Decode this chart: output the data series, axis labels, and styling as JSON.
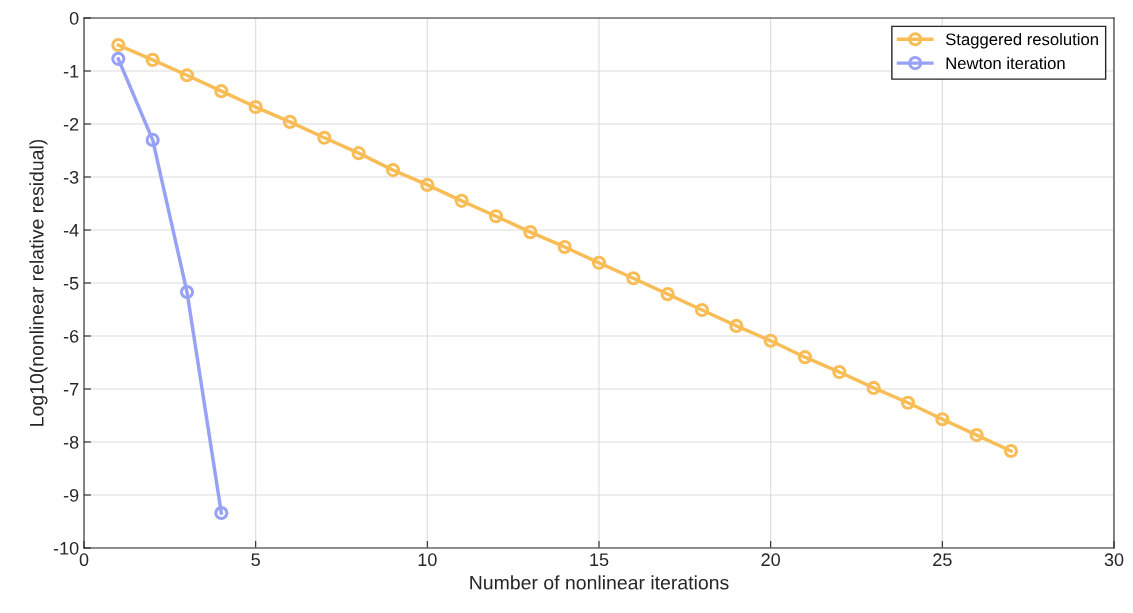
{
  "chart_data": {
    "type": "line",
    "xlabel": "Number of nonlinear iterations",
    "ylabel": "Log10(nonlinear relative residual)",
    "xlim": [
      0,
      30
    ],
    "xticks": [
      0,
      5,
      10,
      15,
      20,
      25,
      30
    ],
    "ylim": [
      -10,
      0
    ],
    "yticks": [
      -10,
      -9,
      -8,
      -7,
      -6,
      -5,
      -4,
      -3,
      -2,
      -1,
      0
    ],
    "grid": true,
    "legend": "top right",
    "marker": "circle",
    "line_style": "solid",
    "series": [
      {
        "name": "Staggered resolution",
        "color": "#f9bd57",
        "x": [
          1,
          2,
          3,
          4,
          5,
          6,
          7,
          8,
          9,
          10,
          11,
          12,
          13,
          14,
          15,
          16,
          17,
          18,
          19,
          20,
          21,
          22,
          23,
          24,
          25,
          26,
          27
        ],
        "values": [
          -0.51,
          -0.79,
          -1.08,
          -1.38,
          -1.68,
          -1.96,
          -2.26,
          -2.55,
          -2.87,
          -3.15,
          -3.45,
          -3.74,
          -4.04,
          -4.32,
          -4.62,
          -4.91,
          -5.21,
          -5.51,
          -5.81,
          -6.09,
          -6.4,
          -6.68,
          -6.98,
          -7.26,
          -7.57,
          -7.87,
          -8.17
        ]
      },
      {
        "name": "Newton iteration",
        "color": "#98a2f4",
        "x": [
          1,
          2,
          3,
          4
        ],
        "values": [
          -0.77,
          -2.3,
          -5.17,
          -9.34
        ]
      }
    ]
  }
}
